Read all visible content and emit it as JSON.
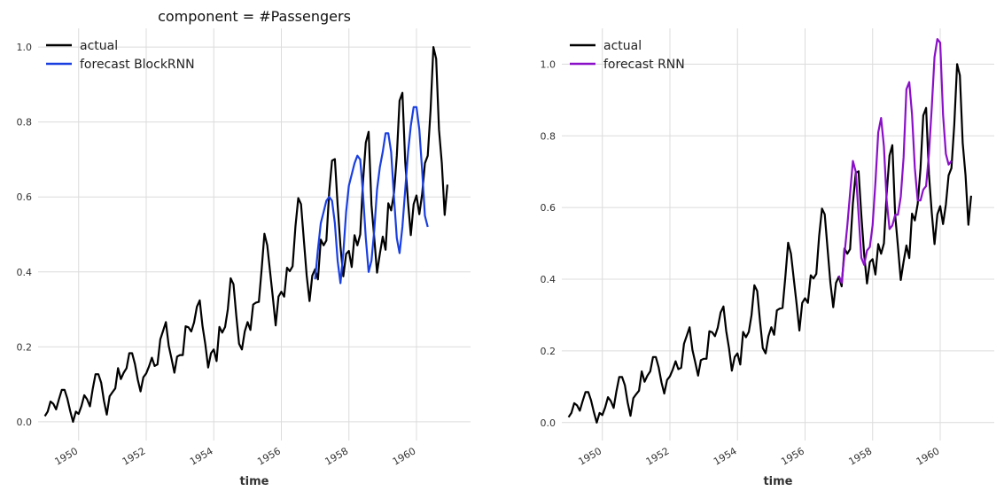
{
  "chart_data": [
    {
      "type": "line",
      "title": "component = #Passengers",
      "xlabel": "time",
      "ylabel": "",
      "xlim": [
        1948.8,
        1961.6
      ],
      "ylim": [
        -0.05,
        1.05
      ],
      "xticks": [
        1950,
        1952,
        1954,
        1956,
        1958,
        1960
      ],
      "xtick_labels": [
        "1950",
        "1952",
        "1954",
        "1956",
        "1958",
        "1960"
      ],
      "yticks": [
        0.0,
        0.2,
        0.4,
        0.6,
        0.8,
        1.0
      ],
      "ytick_labels": [
        "0.0",
        "0.2",
        "0.4",
        "0.6",
        "0.8",
        "1.0"
      ],
      "grid": true,
      "legend": "top-left",
      "series": [
        {
          "name": "actual",
          "color": "#000000",
          "x_start": 1949.0,
          "x_step": 0.0833333,
          "values": [
            0.015,
            0.027,
            0.054,
            0.048,
            0.033,
            0.06,
            0.085,
            0.085,
            0.062,
            0.029,
            0.0,
            0.027,
            0.021,
            0.042,
            0.071,
            0.06,
            0.041,
            0.087,
            0.127,
            0.127,
            0.104,
            0.056,
            0.019,
            0.068,
            0.079,
            0.089,
            0.143,
            0.114,
            0.131,
            0.143,
            0.183,
            0.183,
            0.154,
            0.112,
            0.081,
            0.119,
            0.129,
            0.148,
            0.171,
            0.149,
            0.153,
            0.22,
            0.243,
            0.266,
            0.203,
            0.168,
            0.131,
            0.174,
            0.178,
            0.178,
            0.255,
            0.252,
            0.241,
            0.265,
            0.307,
            0.324,
            0.256,
            0.207,
            0.145,
            0.183,
            0.193,
            0.162,
            0.253,
            0.238,
            0.253,
            0.3,
            0.383,
            0.367,
            0.282,
            0.208,
            0.193,
            0.241,
            0.266,
            0.245,
            0.313,
            0.318,
            0.32,
            0.408,
            0.502,
            0.471,
            0.4,
            0.33,
            0.257,
            0.334,
            0.347,
            0.334,
            0.411,
            0.402,
            0.415,
            0.521,
            0.597,
            0.581,
            0.485,
            0.39,
            0.322,
            0.39,
            0.407,
            0.38,
            0.486,
            0.471,
            0.484,
            0.613,
            0.697,
            0.701,
            0.579,
            0.469,
            0.388,
            0.448,
            0.456,
            0.413,
            0.498,
            0.471,
            0.5,
            0.639,
            0.745,
            0.774,
            0.579,
            0.492,
            0.398,
            0.449,
            0.494,
            0.459,
            0.583,
            0.564,
            0.61,
            0.71,
            0.857,
            0.878,
            0.693,
            0.585,
            0.498,
            0.581,
            0.604,
            0.554,
            0.608,
            0.69,
            0.71,
            0.832,
            1.0,
            0.969,
            0.78,
            0.69,
            0.552,
            0.633
          ]
        },
        {
          "name": "forecast BlockRNN",
          "color": "#1a3fe0",
          "x_start": 1957.0,
          "x_step": 0.0833333,
          "values": [
            0.38,
            0.46,
            0.53,
            0.56,
            0.59,
            0.6,
            0.59,
            0.53,
            0.43,
            0.37,
            0.45,
            0.56,
            0.63,
            0.66,
            0.69,
            0.71,
            0.7,
            0.61,
            0.49,
            0.4,
            0.43,
            0.51,
            0.62,
            0.68,
            0.72,
            0.77,
            0.77,
            0.72,
            0.6,
            0.49,
            0.45,
            0.52,
            0.62,
            0.72,
            0.79,
            0.84,
            0.84,
            0.78,
            0.67,
            0.55,
            0.52
          ]
        }
      ]
    },
    {
      "type": "line",
      "title": "",
      "xlabel": "time",
      "ylabel": "",
      "xlim": [
        1948.8,
        1961.6
      ],
      "ylim": [
        -0.05,
        1.1
      ],
      "xticks": [
        1950,
        1952,
        1954,
        1956,
        1958,
        1960
      ],
      "xtick_labels": [
        "1950",
        "1952",
        "1954",
        "1956",
        "1958",
        "1960"
      ],
      "yticks": [
        0.0,
        0.2,
        0.4,
        0.6,
        0.8,
        1.0
      ],
      "ytick_labels": [
        "0.0",
        "0.2",
        "0.4",
        "0.6",
        "0.8",
        "1.0"
      ],
      "grid": true,
      "legend": "top-left",
      "series": [
        {
          "name": "actual",
          "color": "#000000",
          "x_start": 1949.0,
          "x_step": 0.0833333,
          "values": [
            0.015,
            0.027,
            0.054,
            0.048,
            0.033,
            0.06,
            0.085,
            0.085,
            0.062,
            0.029,
            0.0,
            0.027,
            0.021,
            0.042,
            0.071,
            0.06,
            0.041,
            0.087,
            0.127,
            0.127,
            0.104,
            0.056,
            0.019,
            0.068,
            0.079,
            0.089,
            0.143,
            0.114,
            0.131,
            0.143,
            0.183,
            0.183,
            0.154,
            0.112,
            0.081,
            0.119,
            0.129,
            0.148,
            0.171,
            0.149,
            0.153,
            0.22,
            0.243,
            0.266,
            0.203,
            0.168,
            0.131,
            0.174,
            0.178,
            0.178,
            0.255,
            0.252,
            0.241,
            0.265,
            0.307,
            0.324,
            0.256,
            0.207,
            0.145,
            0.183,
            0.193,
            0.162,
            0.253,
            0.238,
            0.253,
            0.3,
            0.383,
            0.367,
            0.282,
            0.208,
            0.193,
            0.241,
            0.266,
            0.245,
            0.313,
            0.318,
            0.32,
            0.408,
            0.502,
            0.471,
            0.4,
            0.33,
            0.257,
            0.334,
            0.347,
            0.334,
            0.411,
            0.402,
            0.415,
            0.521,
            0.597,
            0.581,
            0.485,
            0.39,
            0.322,
            0.39,
            0.407,
            0.38,
            0.486,
            0.471,
            0.484,
            0.613,
            0.697,
            0.701,
            0.579,
            0.469,
            0.388,
            0.448,
            0.456,
            0.413,
            0.498,
            0.471,
            0.5,
            0.639,
            0.745,
            0.774,
            0.579,
            0.492,
            0.398,
            0.449,
            0.494,
            0.459,
            0.583,
            0.564,
            0.61,
            0.71,
            0.857,
            0.878,
            0.693,
            0.585,
            0.498,
            0.581,
            0.604,
            0.554,
            0.608,
            0.69,
            0.71,
            0.832,
            1.0,
            0.969,
            0.78,
            0.69,
            0.552,
            0.633
          ]
        },
        {
          "name": "forecast RNN",
          "color": "#8a10c8",
          "x_start": 1957.0,
          "x_step": 0.0833333,
          "values": [
            0.41,
            0.39,
            0.47,
            0.55,
            0.64,
            0.73,
            0.7,
            0.58,
            0.46,
            0.44,
            0.48,
            0.49,
            0.55,
            0.67,
            0.81,
            0.85,
            0.77,
            0.62,
            0.54,
            0.55,
            0.58,
            0.58,
            0.63,
            0.74,
            0.93,
            0.95,
            0.86,
            0.71,
            0.62,
            0.62,
            0.65,
            0.66,
            0.75,
            0.88,
            1.02,
            1.07,
            1.06,
            0.86,
            0.75,
            0.72,
            0.73
          ]
        }
      ]
    }
  ]
}
